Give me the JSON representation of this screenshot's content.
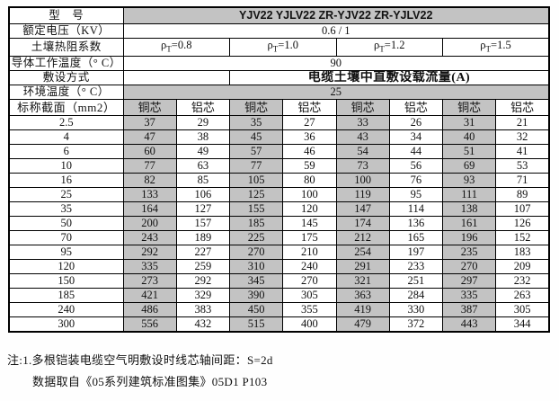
{
  "table": {
    "model": {
      "label": "型　号",
      "value": "YJV22  YJLV22  ZR-YJV22  ZR-YJLV22"
    },
    "voltage": {
      "label": "额定电压（KV）",
      "value": "0.6 / 1"
    },
    "soil_thermal": {
      "label": "土壤热阻系数",
      "cols": [
        {
          "base": "ρ",
          "sub": "T",
          "rest": "=0.8"
        },
        {
          "base": "ρ",
          "sub": "T",
          "rest": "=1.0"
        },
        {
          "base": "ρ",
          "sub": "T",
          "rest": "=1.2"
        },
        {
          "base": "ρ",
          "sub": "T",
          "rest": "=1.5"
        }
      ]
    },
    "conductor_temp": {
      "label": "导体工作温度（° C）",
      "value": "90"
    },
    "laying": {
      "label": "敷设方式",
      "empty": "",
      "value": "电缆土壤中直敷设载流量(A)"
    },
    "ambient": {
      "label": "环境温度（° C）",
      "value": "25"
    },
    "section_header": {
      "label": "标称截面（mm2）",
      "core_headers": [
        "铜芯",
        "铝芯",
        "铜芯",
        "铝芯",
        "铜芯",
        "铝芯",
        "铜芯",
        "铝芯"
      ]
    },
    "rows": [
      {
        "section": "2.5",
        "values": [
          37,
          29,
          35,
          27,
          33,
          26,
          31,
          21
        ]
      },
      {
        "section": "4",
        "values": [
          47,
          38,
          45,
          36,
          43,
          34,
          40,
          32
        ]
      },
      {
        "section": "6",
        "values": [
          60,
          49,
          57,
          46,
          54,
          44,
          51,
          41
        ]
      },
      {
        "section": "10",
        "values": [
          77,
          63,
          77,
          59,
          73,
          56,
          69,
          53
        ]
      },
      {
        "section": "16",
        "values": [
          82,
          85,
          105,
          80,
          100,
          76,
          93,
          71
        ]
      },
      {
        "section": "25",
        "values": [
          133,
          106,
          125,
          100,
          119,
          95,
          111,
          89
        ]
      },
      {
        "section": "35",
        "values": [
          164,
          127,
          155,
          120,
          147,
          114,
          138,
          107
        ]
      },
      {
        "section": "50",
        "values": [
          200,
          157,
          185,
          145,
          174,
          136,
          161,
          126
        ]
      },
      {
        "section": "70",
        "values": [
          243,
          189,
          225,
          175,
          212,
          165,
          196,
          152
        ]
      },
      {
        "section": "95",
        "values": [
          292,
          227,
          270,
          210,
          254,
          197,
          235,
          183
        ]
      },
      {
        "section": "120",
        "values": [
          335,
          259,
          310,
          240,
          291,
          233,
          270,
          209
        ]
      },
      {
        "section": "150",
        "values": [
          273,
          292,
          345,
          270,
          321,
          251,
          297,
          232
        ]
      },
      {
        "section": "185",
        "values": [
          421,
          329,
          390,
          305,
          363,
          284,
          335,
          263
        ]
      },
      {
        "section": "240",
        "values": [
          486,
          383,
          450,
          355,
          419,
          330,
          387,
          305
        ]
      },
      {
        "section": "300",
        "values": [
          556,
          432,
          515,
          400,
          479,
          372,
          443,
          344
        ]
      }
    ]
  },
  "notes": {
    "line1": "注:1.多根铠装电缆空气明敷设时线芯轴间距：S=2d",
    "line2": "数据取自《05系列建筑标准图集》05D1 P103"
  },
  "colors": {
    "fill_gray": "#c3c3c3",
    "fill_white": "#ffffff",
    "border": "#000000",
    "text": "#111111"
  }
}
